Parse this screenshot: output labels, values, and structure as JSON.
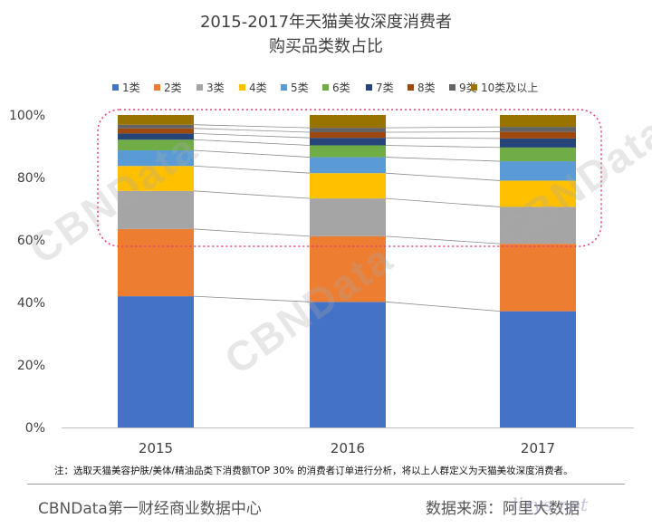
{
  "title_line1": "2015-2017年天猫美妆深度消费者",
  "title_line2": "购买品类数占比",
  "note": "注：选取天猫美容护肤/美体/精油品类下消费额TOP 30% 的消费者订单进行分析，将以上人群定义为天猫美妆深度消费者。",
  "footer_left": "CBNData第一财经商业数据中心",
  "footer_right": "数据来源：阿里大数据",
  "watermark": "CBNData",
  "corner_mark": "lizys.net",
  "chart_data": {
    "type": "bar",
    "stacked": true,
    "percent": true,
    "categories": [
      "2015",
      "2016",
      "2017"
    ],
    "ylim": [
      0,
      100
    ],
    "yticks": [
      "0%",
      "20%",
      "40%",
      "60%",
      "80%",
      "100%"
    ],
    "legend_position": "top",
    "series": [
      {
        "name": "1类",
        "color": "#4472C4",
        "values": [
          42.0,
          40.2,
          37.2
        ]
      },
      {
        "name": "2类",
        "color": "#ED7D31",
        "values": [
          21.5,
          21.0,
          21.6
        ]
      },
      {
        "name": "3类",
        "color": "#A5A5A5",
        "values": [
          12.2,
          12.1,
          11.8
        ]
      },
      {
        "name": "4类",
        "color": "#FFC000",
        "values": [
          8.0,
          8.1,
          8.4
        ]
      },
      {
        "name": "5类",
        "color": "#5B9BD5",
        "values": [
          5.0,
          5.1,
          6.2
        ]
      },
      {
        "name": "6类",
        "color": "#70AD47",
        "values": [
          3.4,
          3.8,
          4.4
        ]
      },
      {
        "name": "7类",
        "color": "#264478",
        "values": [
          2.0,
          2.4,
          2.9
        ]
      },
      {
        "name": "8类",
        "color": "#9E480E",
        "values": [
          1.6,
          1.8,
          2.1
        ]
      },
      {
        "name": "9类",
        "color": "#636363",
        "values": [
          1.2,
          1.4,
          1.6
        ]
      },
      {
        "name": "10类及以上",
        "color": "#997300",
        "values": [
          3.1,
          4.1,
          3.8
        ]
      }
    ]
  }
}
